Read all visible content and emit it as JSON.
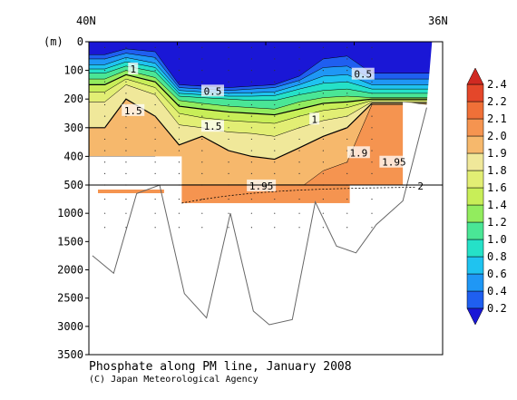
{
  "chart_data": {
    "type": "heatmap",
    "title": "Phosphate along PM line, January 2008",
    "credit": "(C) Japan Meteorological Agency",
    "ylabel": "(m)",
    "x_labels": {
      "left": "40N",
      "right": "36N"
    },
    "depth_ticks_upper": [
      0,
      100,
      200,
      300,
      400,
      500
    ],
    "depth_ticks_lower": [
      1000,
      1500,
      2000,
      2500,
      3000,
      3500
    ],
    "ylim": [
      0,
      3500
    ],
    "depth_break": 500,
    "colorbar": {
      "levels": [
        0.2,
        0.4,
        0.6,
        0.8,
        1.0,
        1.2,
        1.4,
        1.6,
        1.8,
        1.9,
        2.0,
        2.1,
        2.2,
        2.4
      ],
      "colors": [
        "#1a17d6",
        "#1f5ff0",
        "#1f97f5",
        "#1fc3f0",
        "#25e1c8",
        "#4ae696",
        "#92ec5e",
        "#c8ee58",
        "#e2ee74",
        "#f0e89a",
        "#f6b86c",
        "#f59450",
        "#f07038",
        "#e4472a",
        "#d02a22"
      ]
    },
    "bands": [
      {
        "value": 0.3,
        "depths": [
          45,
          25,
          35,
          150,
          155,
          160,
          155,
          150,
          120,
          60,
          50,
          110
        ]
      },
      {
        "value": 0.5,
        "depths": [
          60,
          40,
          55,
          160,
          165,
          170,
          165,
          160,
          135,
          90,
          85,
          130
        ]
      },
      {
        "value": 0.7,
        "depths": [
          80,
          55,
          75,
          170,
          175,
          180,
          178,
          175,
          150,
          120,
          115,
          150
        ]
      },
      {
        "value": 0.9,
        "depths": [
          95,
          70,
          90,
          180,
          185,
          190,
          190,
          188,
          165,
          145,
          140,
          165
        ]
      },
      {
        "value": 1.1,
        "depths": [
          110,
          85,
          105,
          190,
          195,
          200,
          205,
          205,
          185,
          170,
          165,
          180
        ]
      },
      {
        "value": 1.3,
        "depths": [
          130,
          100,
          125,
          205,
          215,
          225,
          230,
          235,
          210,
          195,
          190,
          195
        ]
      },
      {
        "value": 1.5,
        "depths": [
          150,
          115,
          140,
          225,
          235,
          245,
          250,
          255,
          235,
          215,
          210,
          200
        ]
      },
      {
        "value": 1.7,
        "depths": [
          175,
          130,
          160,
          250,
          265,
          275,
          280,
          285,
          260,
          240,
          230,
          205
        ]
      },
      {
        "value": 1.85,
        "depths": [
          210,
          150,
          185,
          290,
          300,
          315,
          320,
          330,
          300,
          275,
          260,
          210
        ]
      },
      {
        "value": 1.95,
        "depths": [
          300,
          200,
          260,
          360,
          330,
          380,
          400,
          410,
          370,
          330,
          300,
          215
        ]
      },
      {
        "value": 2.05,
        "depths": [
          400,
          400,
          400,
          650,
          650,
          650,
          650,
          650,
          560,
          450,
          420,
          220
        ]
      }
    ],
    "contour_labels": [
      {
        "text": "1",
        "lat": 39.5,
        "depth": 95
      },
      {
        "text": "0.5",
        "lat": 38.6,
        "depth": 172
      },
      {
        "text": "0.5",
        "lat": 36.9,
        "depth": 113
      },
      {
        "text": "1.5",
        "lat": 39.5,
        "depth": 240
      },
      {
        "text": "1.5",
        "lat": 38.6,
        "depth": 295
      },
      {
        "text": "1",
        "lat": 37.45,
        "depth": 270
      },
      {
        "text": "1.9",
        "lat": 36.95,
        "depth": 387
      },
      {
        "text": "1.95",
        "lat": 36.55,
        "depth": 420
      },
      {
        "text": "1.95",
        "lat": 38.05,
        "depth": 515
      },
      {
        "text": "2",
        "lat": 36.25,
        "depth": 520
      }
    ],
    "bottom_profile": [
      {
        "lat": 39.96,
        "depth": 1750
      },
      {
        "lat": 39.72,
        "depth": 2060
      },
      {
        "lat": 39.46,
        "depth": 650
      },
      {
        "lat": 39.2,
        "depth": 500
      },
      {
        "lat": 38.92,
        "depth": 2420
      },
      {
        "lat": 38.67,
        "depth": 2850
      },
      {
        "lat": 38.4,
        "depth": 1000
      },
      {
        "lat": 38.14,
        "depth": 2730
      },
      {
        "lat": 37.96,
        "depth": 2970
      },
      {
        "lat": 37.7,
        "depth": 2880
      },
      {
        "lat": 37.44,
        "depth": 800
      },
      {
        "lat": 37.2,
        "depth": 1580
      },
      {
        "lat": 36.98,
        "depth": 1700
      },
      {
        "lat": 36.75,
        "depth": 1200
      },
      {
        "lat": 36.45,
        "depth": 780
      },
      {
        "lat": 36.18,
        "depth": 230
      }
    ]
  }
}
